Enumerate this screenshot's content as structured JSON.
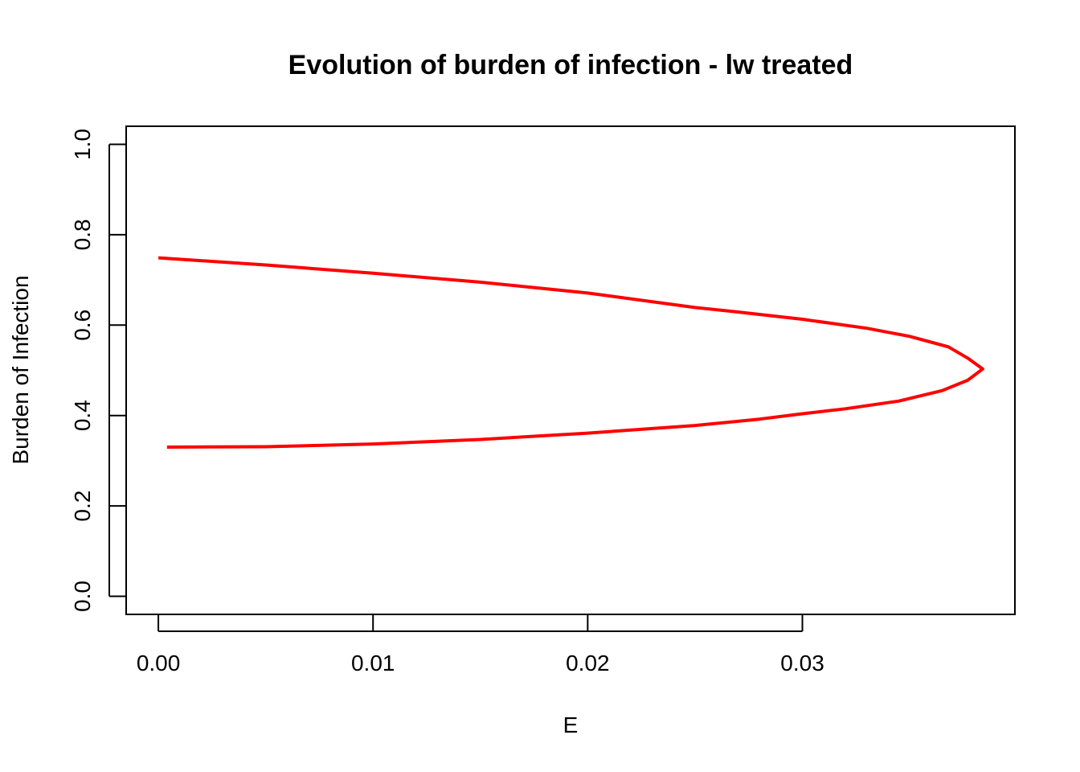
{
  "chart_data": {
    "type": "line",
    "title": "Evolution of burden of infection - lw treated",
    "xlabel": "E",
    "ylabel": "Burden of Infection",
    "xlim": [
      -0.0015,
      0.0399
    ],
    "ylim": [
      -0.04,
      1.04
    ],
    "x_ticks": [
      0.0,
      0.01,
      0.02,
      0.03
    ],
    "x_tick_labels": [
      "0.00",
      "0.01",
      "0.02",
      "0.03"
    ],
    "y_ticks": [
      0.0,
      0.2,
      0.4,
      0.6,
      0.8,
      1.0
    ],
    "y_tick_labels": [
      "0.0",
      "0.2",
      "0.4",
      "0.6",
      "0.8",
      "1.0"
    ],
    "grid": false,
    "legend": "none",
    "series": [
      {
        "color": "#ff0000",
        "x": [
          0.0004,
          0.005,
          0.01,
          0.015,
          0.02,
          0.025,
          0.028,
          0.03,
          0.032,
          0.0345,
          0.0365,
          0.0377,
          0.0384,
          0.0377,
          0.0368,
          0.035,
          0.033,
          0.03,
          0.027,
          0.025,
          0.02,
          0.015,
          0.01,
          0.005,
          0.0
        ],
        "y": [
          0.33,
          0.331,
          0.337,
          0.347,
          0.361,
          0.378,
          0.392,
          0.404,
          0.415,
          0.432,
          0.455,
          0.478,
          0.503,
          0.527,
          0.552,
          0.575,
          0.593,
          0.613,
          0.629,
          0.639,
          0.671,
          0.695,
          0.715,
          0.733,
          0.749
        ]
      }
    ]
  }
}
